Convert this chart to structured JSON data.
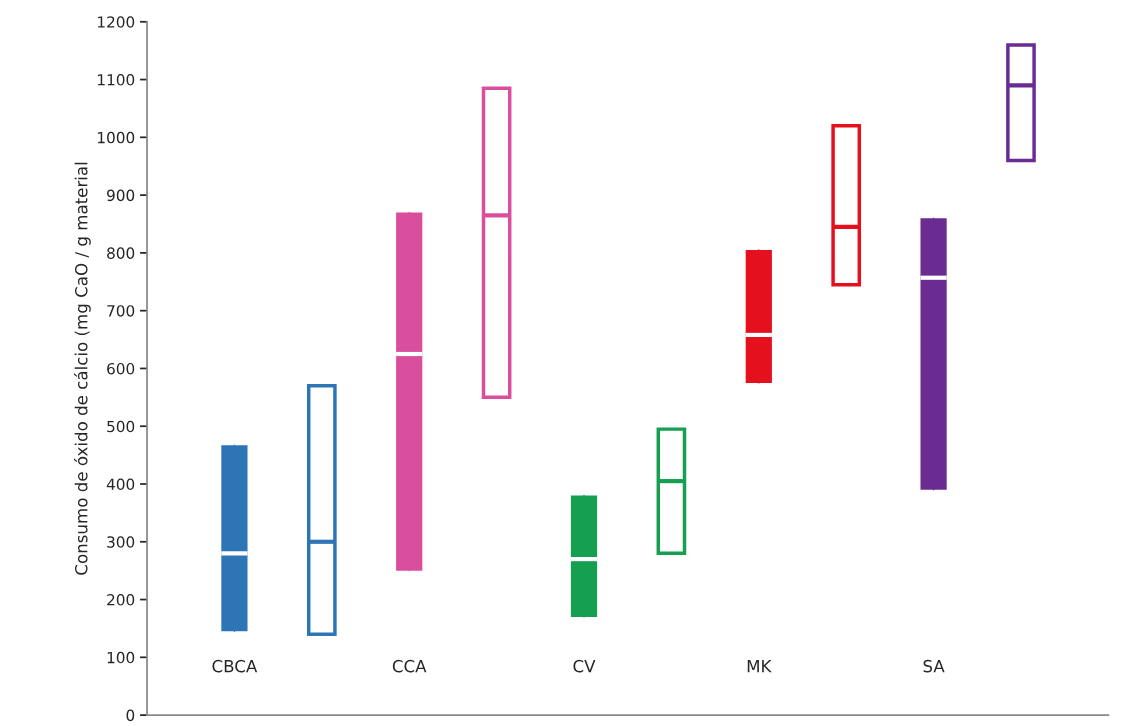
{
  "chart_data": {
    "type": "box",
    "ylabel": "Consumo de óxido de cálcio (mg CaO / g material",
    "categories": [
      "CBCA",
      null,
      "CCA",
      null,
      "CV",
      null,
      "MK",
      null,
      "SA",
      null
    ],
    "ylim": [
      0,
      1200
    ],
    "yticks": [
      0,
      100,
      200,
      300,
      400,
      500,
      600,
      700,
      800,
      900,
      1000,
      1100,
      1200
    ],
    "grid": false,
    "legend": false,
    "series": [
      {
        "colors": [
          "#2e75b6",
          "#2e75b6",
          "#d94f9e",
          "#d94f9e",
          "#14a050",
          "#14a050",
          "#e5101e",
          "#e5101e",
          "#6a2c91",
          "#6a2c91"
        ],
        "boxes": [
          {
            "low": 145,
            "q1": 145,
            "median": 280,
            "q3": 467,
            "high": 467
          },
          null,
          {
            "low": 250,
            "q1": 250,
            "median": 625,
            "q3": 870,
            "high": 870
          },
          null,
          {
            "low": 170,
            "q1": 170,
            "median": 270,
            "q3": 380,
            "high": 380
          },
          null,
          {
            "low": 575,
            "q1": 575,
            "median": 658,
            "q3": 805,
            "high": 805
          },
          null,
          {
            "low": 390,
            "q1": 390,
            "median": 757,
            "q3": 860,
            "high": 860
          },
          null
        ]
      },
      {
        "colors": [
          "#2e75b6",
          "#2e75b6",
          "#d94f9e",
          "#d94f9e",
          "#14a050",
          "#14a050",
          "#e5101e",
          "#e5101e",
          "#6a2c91",
          "#6a2c91"
        ],
        "boxes": [
          null,
          {
            "low": 140,
            "q1": 140,
            "median": 300,
            "q3": 570,
            "high": 570
          },
          null,
          {
            "low": 550,
            "q1": 550,
            "median": 865,
            "q3": 1085,
            "high": 1085
          },
          null,
          {
            "low": 280,
            "q1": 280,
            "median": 405,
            "q3": 495,
            "high": 495
          },
          null,
          {
            "low": 745,
            "q1": 745,
            "median": 845,
            "q3": 1020,
            "high": 1020
          },
          null,
          {
            "low": 960,
            "q1": 960,
            "median": 1090,
            "q3": 1160,
            "high": 1160
          }
        ]
      }
    ]
  }
}
